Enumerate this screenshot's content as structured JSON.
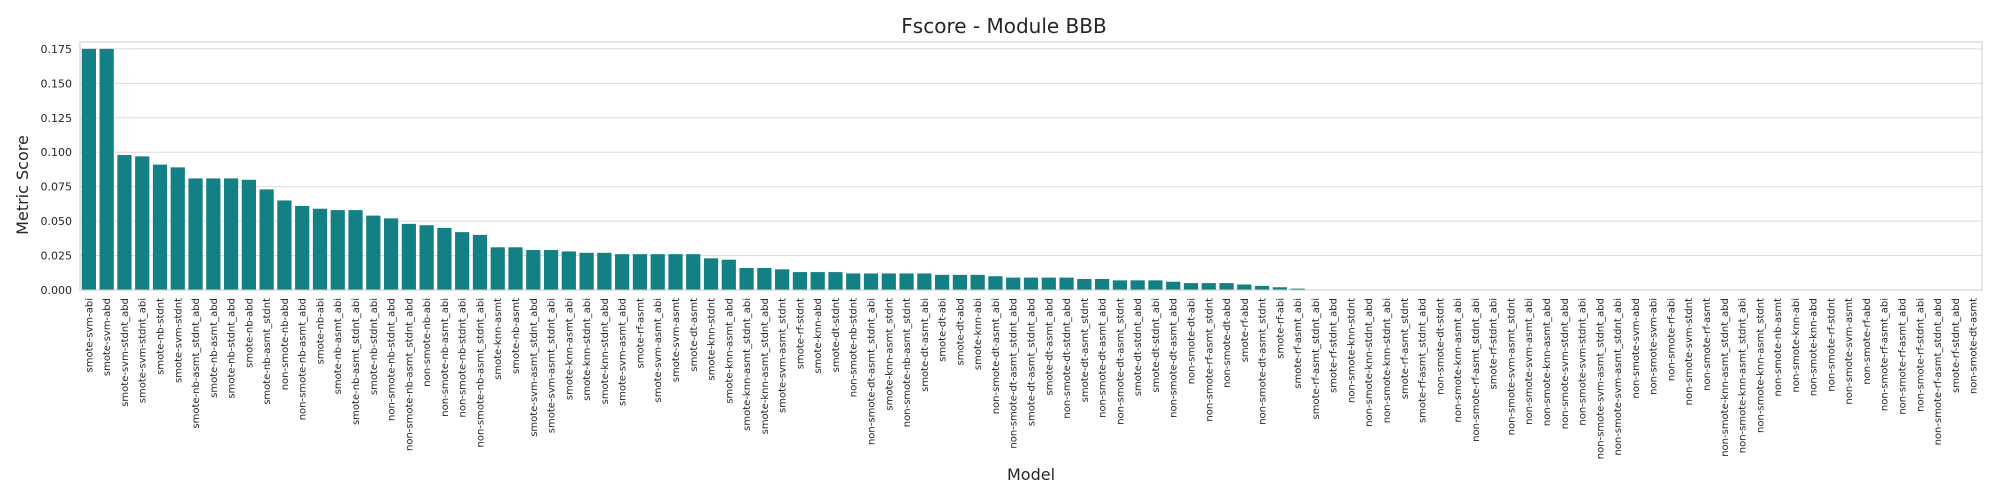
{
  "chart_data": {
    "type": "bar",
    "title": "Fscore - Module BBB",
    "xlabel": "Model",
    "ylabel": "Metric Score",
    "ylim": [
      0,
      0.18
    ],
    "yticks": [
      "0.000",
      "0.025",
      "0.050",
      "0.075",
      "0.100",
      "0.125",
      "0.150",
      "0.175"
    ],
    "grid": true,
    "bar_color": "#138086",
    "categories": [
      "smote-svm-abi",
      "smote-svm-abd",
      "smote-svm-stdnt_abd",
      "smote-svm-stdnt_abi",
      "smote-nb-stdnt",
      "smote-svm-stdnt",
      "smote-nb-asmt_stdnt_abd",
      "smote-nb-asmt_abd",
      "smote-nb-stdnt_abd",
      "smote-nb-abd",
      "smote-nb-asmt_stdnt",
      "non-smote-nb-abd",
      "non-smote-nb-asmt_abd",
      "smote-nb-abi",
      "smote-nb-asmt_abi",
      "smote-nb-asmt_stdnt_abi",
      "smote-nb-stdnt_abi",
      "non-smote-nb-stdnt_abd",
      "non-smote-nb-asmt_stdnt_abd",
      "non-smote-nb-abi",
      "non-smote-nb-asmt_abi",
      "non-smote-nb-stdnt_abi",
      "non-smote-nb-asmt_stdnt_abi",
      "smote-knn-asmt",
      "smote-nb-asmt",
      "smote-svm-asmt_stdnt_abd",
      "smote-svm-asmt_stdnt_abi",
      "smote-knn-asmt_abi",
      "smote-knn-stdnt_abi",
      "smote-knn-stdnt_abd",
      "smote-svm-asmt_abd",
      "smote-rf-asmt",
      "smote-svm-asmt_abi",
      "smote-svm-asmt",
      "smote-dt-asmt",
      "smote-knn-stdnt",
      "smote-knn-asmt_abd",
      "smote-knn-asmt_stdnt_abi",
      "smote-knn-asmt_stdnt_abd",
      "smote-svm-asmt_stdnt",
      "smote-rf-stdnt",
      "smote-knn-abd",
      "smote-dt-stdnt",
      "non-smote-nb-stdnt",
      "non-smote-dt-asmt_stdnt_abi",
      "smote-knn-asmt_stdnt",
      "non-smote-nb-asmt_stdnt",
      "smote-dt-asmt_abi",
      "smote-dt-abi",
      "smote-dt-abd",
      "smote-knn-abi",
      "non-smote-dt-asmt_abi",
      "non-smote-dt-asmt_stdnt_abd",
      "smote-dt-asmt_stdnt_abd",
      "smote-dt-asmt_abd",
      "non-smote-dt-stdnt_abd",
      "smote-dt-asmt_stdnt",
      "non-smote-dt-asmt_abd",
      "non-smote-dt-asmt_stdnt",
      "smote-dt-stdnt_abd",
      "smote-dt-stdnt_abi",
      "non-smote-dt-asmt_abd",
      "non-smote-dt-abi",
      "non-smote-rf-asmt_stdnt",
      "non-smote-dt-abd",
      "smote-rf-abd",
      "non-smote-dt-asmt_stdnt",
      "smote-rf-abi",
      "smote-rf-asmt_abi",
      "smote-rf-asmt_stdnt_abi",
      "smote-rf-stdnt_abd",
      "non-smote-knn-stdnt",
      "non-smote-knn-stdnt_abd",
      "non-smote-knn-stdnt_abi",
      "smote-rf-asmt_stdnt",
      "smote-rf-asmt_stdnt_abd",
      "non-smote-dt-stdnt",
      "non-smote-knn-asmt_abi",
      "non-smote-rf-asmt_stdnt_abi",
      "smote-rf-stdnt_abi",
      "non-smote-svm-asmt_stdnt",
      "non-smote-svm-asmt_abi",
      "non-smote-knn-asmt_abd",
      "non-smote-svm-stdnt_abd",
      "non-smote-svm-stdnt_abi",
      "non-smote-svm-asmt_stdnt_abd",
      "non-smote-svm-asmt_stdnt_abi",
      "non-smote-svm-abd",
      "non-smote-svm-abi",
      "non-smote-rf-abi",
      "non-smote-svm-stdnt",
      "non-smote-rf-asmt",
      "non-smote-knn-asmt_stdnt_abd",
      "non-smote-knn-asmt_stdnt_abi",
      "non-smote-knn-asmt_stdnt",
      "non-smote-nb-asmt",
      "non-smote-knn-abi",
      "non-smote-knn-abd",
      "non-smote-rf-stdnt",
      "non-smote-svm-asmt",
      "non-smote-rf-abd",
      "non-smote-rf-asmt_abi",
      "non-smote-rf-asmt_abd",
      "non-smote-rf-stdnt_abi",
      "non-smote-rf-asmt_stdnt_abd",
      "smote-rf-stdnt_abd",
      "non-smote-dt-asmt"
    ],
    "values": [
      0.175,
      0.175,
      0.098,
      0.097,
      0.091,
      0.089,
      0.081,
      0.081,
      0.081,
      0.08,
      0.073,
      0.065,
      0.061,
      0.059,
      0.058,
      0.058,
      0.054,
      0.052,
      0.048,
      0.047,
      0.045,
      0.042,
      0.04,
      0.031,
      0.031,
      0.029,
      0.029,
      0.028,
      0.027,
      0.027,
      0.026,
      0.026,
      0.026,
      0.026,
      0.026,
      0.023,
      0.022,
      0.016,
      0.016,
      0.015,
      0.013,
      0.013,
      0.013,
      0.012,
      0.012,
      0.012,
      0.012,
      0.012,
      0.011,
      0.011,
      0.011,
      0.01,
      0.009,
      0.009,
      0.009,
      0.009,
      0.008,
      0.008,
      0.007,
      0.007,
      0.007,
      0.006,
      0.005,
      0.005,
      0.005,
      0.004,
      0.003,
      0.002,
      0.001,
      0.0,
      0.0,
      0.0,
      0.0,
      0.0,
      0.0,
      0.0,
      0.0,
      0.0,
      0.0,
      0.0,
      0.0,
      0.0,
      0.0,
      0.0,
      0.0,
      0.0,
      0.0,
      0.0,
      0.0,
      0.0,
      0.0,
      0.0,
      0.0,
      0.0,
      0.0,
      0.0,
      0.0,
      0.0,
      0.0,
      0.0,
      0.0,
      0.0,
      0.0,
      0.0,
      0.0,
      0.0,
      0.0
    ]
  }
}
